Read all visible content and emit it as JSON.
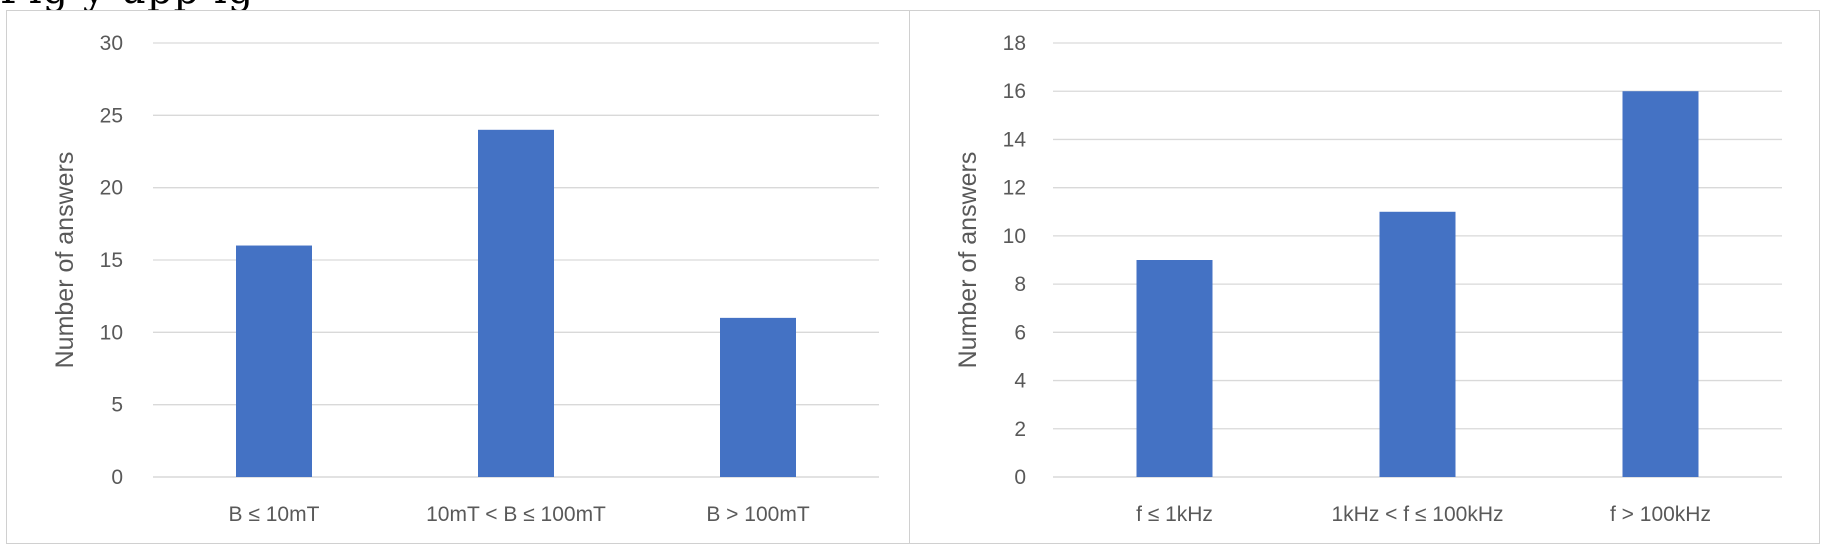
{
  "page": {
    "top_caption": "Fig y               upp                        ig "
  },
  "chart_data": [
    {
      "type": "bar",
      "categories": [
        "B ≤ 10mT",
        "10mT < B ≤ 100mT",
        "B > 100mT"
      ],
      "values": [
        16,
        24,
        11
      ],
      "title": "",
      "xlabel": "",
      "ylabel": "Number of answers",
      "ylim": [
        0,
        30
      ],
      "ytick_step": 5,
      "grid": true,
      "bar_color": "#4472c4"
    },
    {
      "type": "bar",
      "categories": [
        "f ≤ 1kHz",
        "1kHz < f ≤ 100kHz",
        "f > 100kHz"
      ],
      "values": [
        9,
        11,
        16
      ],
      "title": "",
      "xlabel": "",
      "ylabel": "Number of answers",
      "ylim": [
        0,
        18
      ],
      "ytick_step": 2,
      "grid": true,
      "bar_color": "#4472c4"
    }
  ]
}
